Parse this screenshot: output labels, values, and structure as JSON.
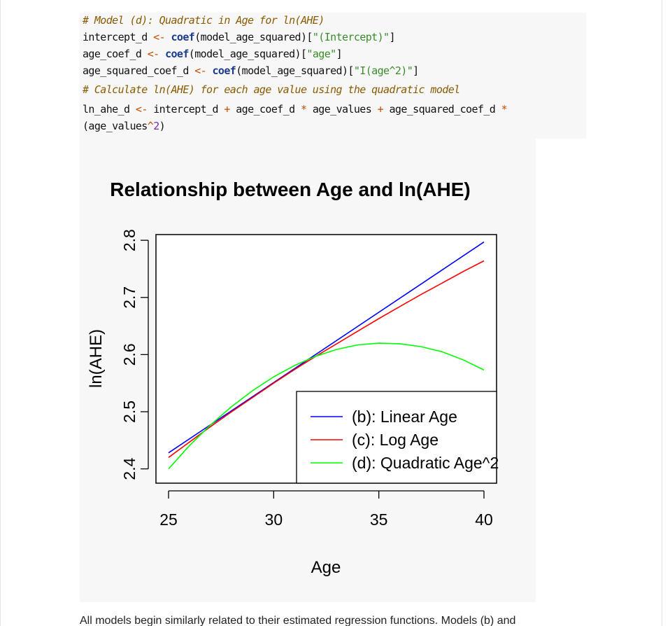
{
  "code": {
    "line1": "# Model (d): Quadratic in Age for ln(AHE)",
    "line2": {
      "a": "intercept_d ",
      "op": "<-",
      "b": " ",
      "fn": "coef",
      "c": "(model_age_squared)[",
      "s": "\"(Intercept)\"",
      "d": "]"
    },
    "line3": {
      "a": "age_coef_d ",
      "op": "<-",
      "b": " ",
      "fn": "coef",
      "c": "(model_age_squared)[",
      "s": "\"age\"",
      "d": "]"
    },
    "line4": {
      "a": "age_squared_coef_d ",
      "op": "<-",
      "b": " ",
      "fn": "coef",
      "c": "(model_age_squared)[",
      "s": "\"I(age^2)\"",
      "d": "]"
    },
    "line5": "# Calculate ln(AHE) for each age value using the quadratic model",
    "line6": {
      "a": "ln_ahe_d ",
      "op1": "<-",
      "b": " intercept_d ",
      "op2": "+",
      "c": " age_coef_d ",
      "op3": "*",
      "d": " age_values ",
      "op4": "+",
      "e": " age_squared_coef_d ",
      "op5": "*"
    },
    "line7": {
      "a": "(age_values",
      "op": "^",
      "num": "2",
      "b": ")"
    }
  },
  "chart_data": {
    "type": "line",
    "title": "Relationship between Age and ln(AHE)",
    "xlabel": "Age",
    "ylabel": "ln(AHE)",
    "xlim": [
      25,
      40
    ],
    "ylim": [
      2.375,
      2.81
    ],
    "xticks": [
      "25",
      "30",
      "35",
      "40"
    ],
    "yticks": [
      "2.4",
      "2.5",
      "2.6",
      "2.7",
      "2.8"
    ],
    "legend_position": "bottom-right",
    "series": [
      {
        "name": "(b): Linear Age",
        "color": "#0000ff",
        "x": [
          25,
          40
        ],
        "y": [
          2.428,
          2.797
        ]
      },
      {
        "name": "(c): Log Age",
        "color": "#ff0000",
        "x": [
          25,
          26,
          27,
          28,
          29,
          30,
          31,
          32,
          33,
          34,
          35,
          36,
          37,
          38,
          39,
          40
        ],
        "y": [
          2.42,
          2.447,
          2.474,
          2.5,
          2.525,
          2.55,
          2.574,
          2.597,
          2.619,
          2.641,
          2.663,
          2.684,
          2.705,
          2.725,
          2.745,
          2.764
        ]
      },
      {
        "name": "(d): Quadratic Age^2",
        "color": "#00ff00",
        "x": [
          25,
          26,
          27,
          28,
          29,
          30,
          31,
          32,
          33,
          34,
          35,
          36,
          37,
          38,
          39,
          40
        ],
        "y": [
          2.4,
          2.441,
          2.477,
          2.509,
          2.537,
          2.561,
          2.581,
          2.597,
          2.609,
          2.617,
          2.62,
          2.619,
          2.614,
          2.605,
          2.591,
          2.573
        ]
      }
    ]
  },
  "bottom_text": "All models begin similarly related to their estimated regression functions. Models (b) and"
}
